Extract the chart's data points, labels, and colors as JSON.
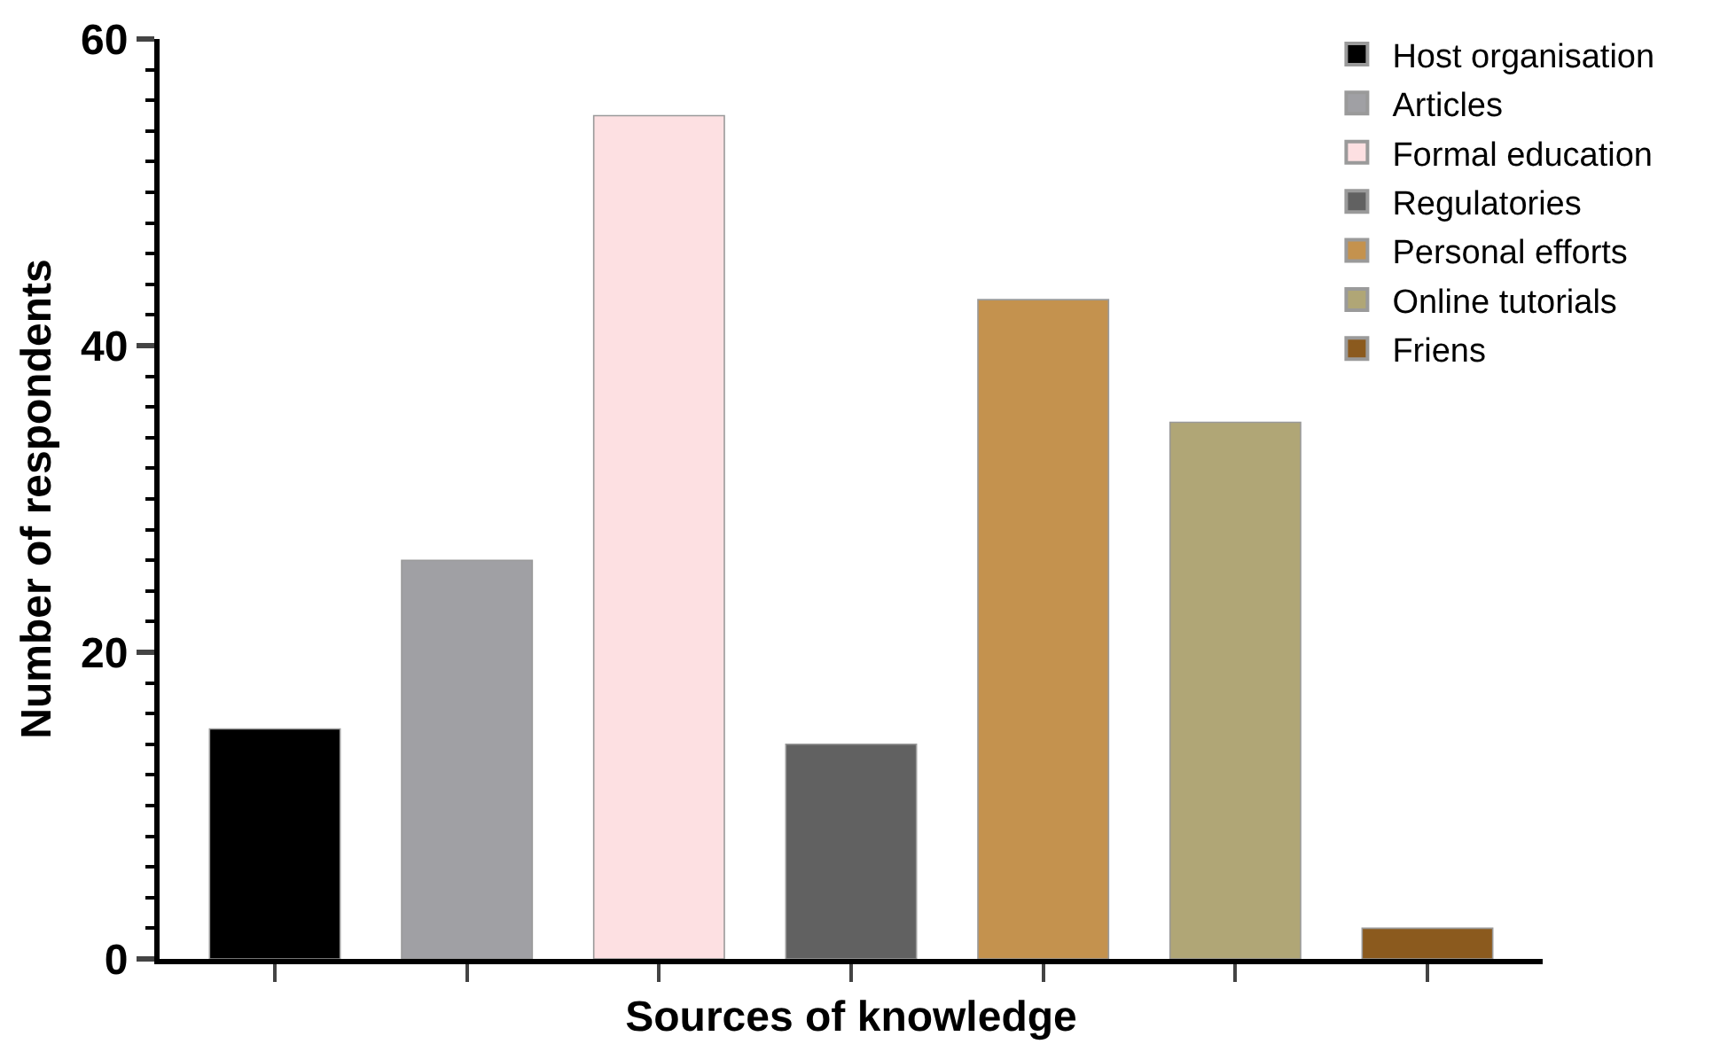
{
  "chart_data": {
    "type": "bar",
    "xlabel": "Sources of knowledge",
    "ylabel": "Number of respondents",
    "categories": [
      null,
      null,
      null,
      null,
      null,
      null,
      null
    ],
    "series": [
      {
        "name": "Host organisation",
        "color": "#000000",
        "values": [
          15,
          null,
          null,
          null,
          null,
          null,
          null
        ]
      },
      {
        "name": "Articles",
        "color": "#a0a0a4",
        "values": [
          null,
          26,
          null,
          null,
          null,
          null,
          null
        ]
      },
      {
        "name": "Formal education",
        "color": "#fde0e2",
        "values": [
          null,
          null,
          55,
          null,
          null,
          null,
          null
        ]
      },
      {
        "name": "Regulatories",
        "color": "#616161",
        "values": [
          null,
          null,
          null,
          14,
          null,
          null,
          null
        ]
      },
      {
        "name": "Personal efforts",
        "color": "#c4924e",
        "values": [
          null,
          null,
          null,
          null,
          43,
          null,
          null
        ]
      },
      {
        "name": "Online tutorials",
        "color": "#b0a676",
        "values": [
          null,
          null,
          null,
          null,
          null,
          35,
          null
        ]
      },
      {
        "name": "Friens",
        "color": "#8b5a1e",
        "values": [
          null,
          null,
          null,
          null,
          null,
          null,
          2
        ]
      }
    ],
    "ylim": [
      0,
      60
    ],
    "yticks": [
      0,
      20,
      40,
      60
    ],
    "grid": false,
    "legend": "top right",
    "tick_labels": "y"
  }
}
